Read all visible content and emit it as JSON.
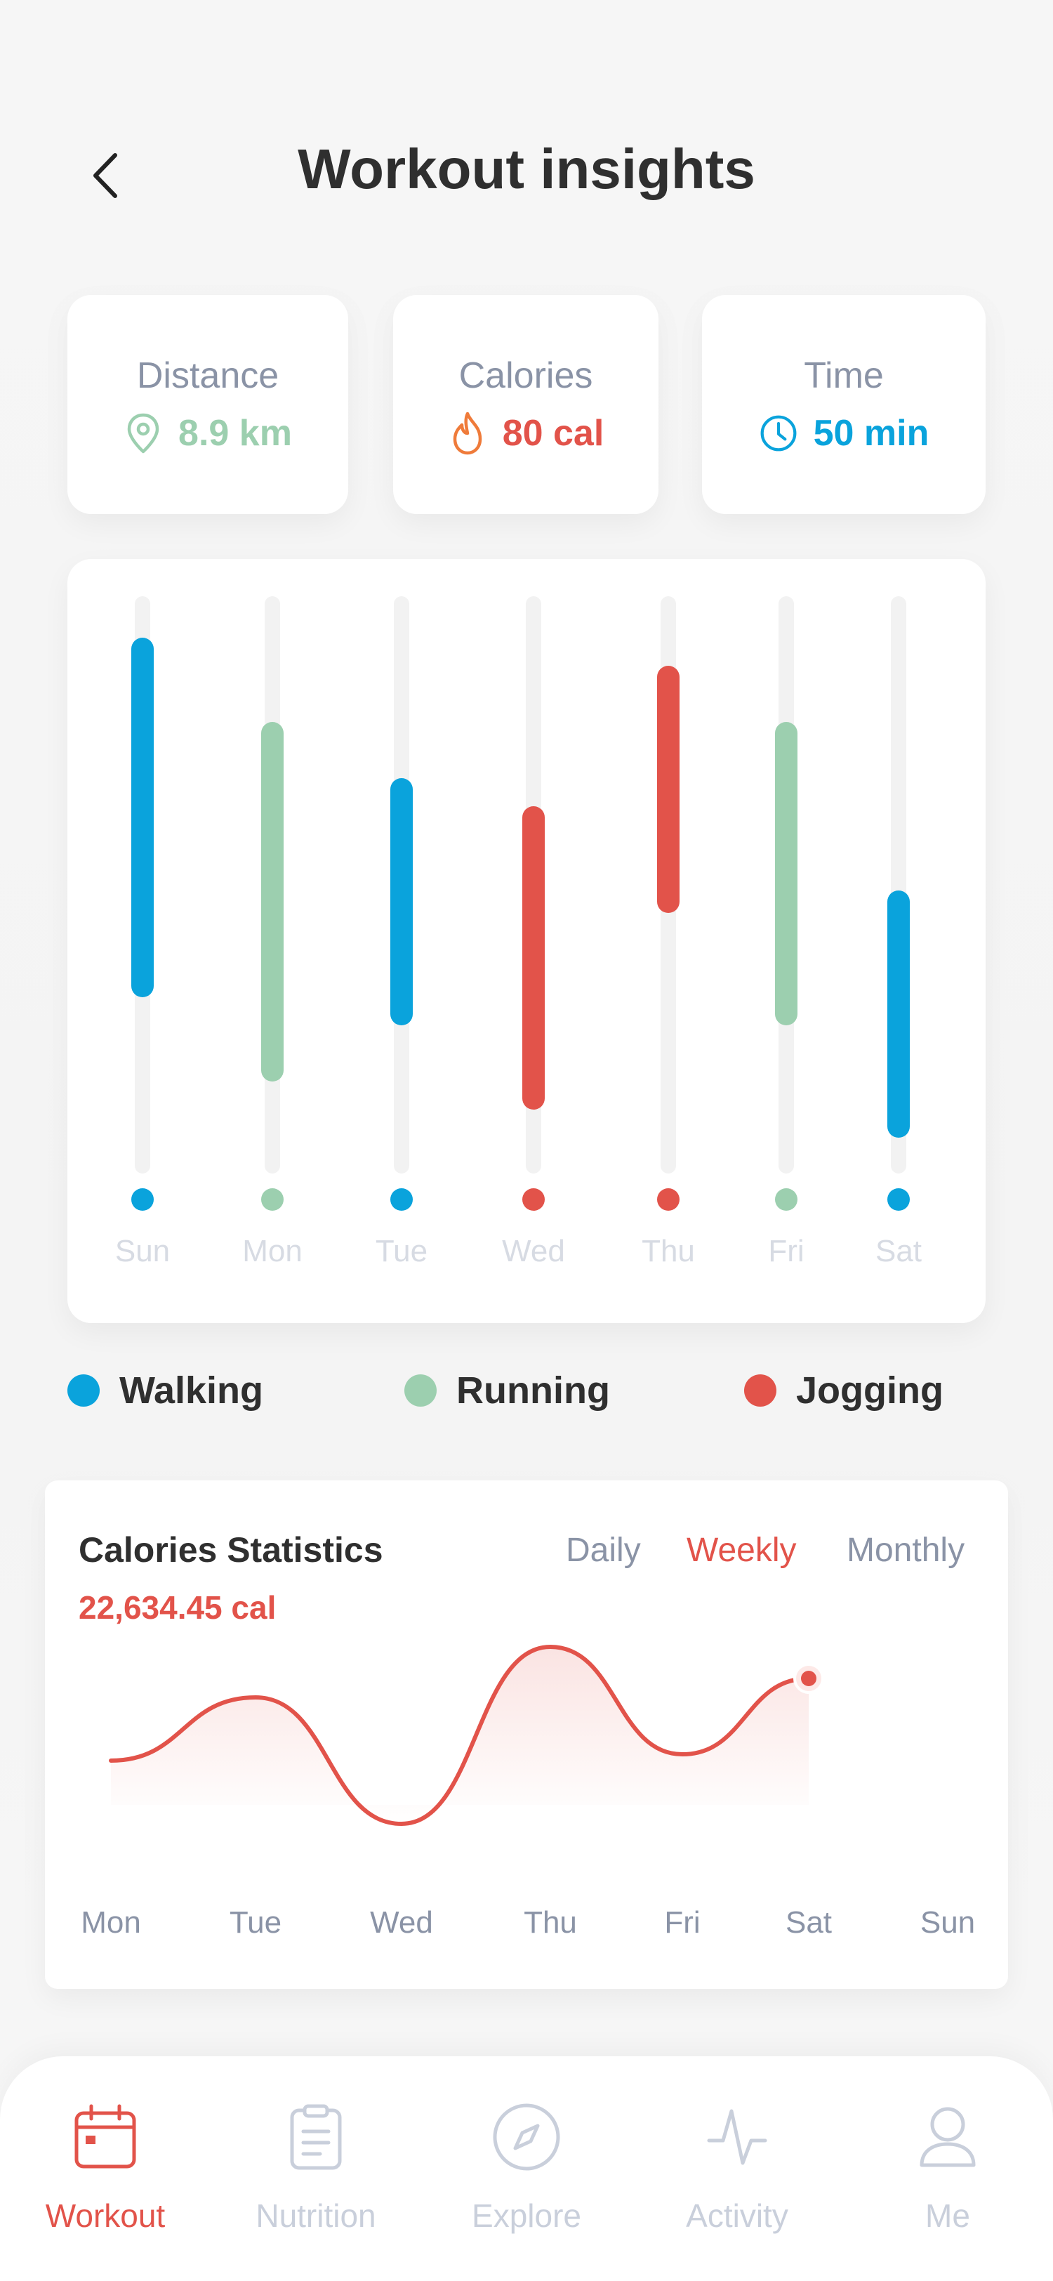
{
  "header": {
    "title": "Workout insights"
  },
  "stats": {
    "distance": {
      "label": "Distance",
      "value": "8.9 km",
      "color": "#9ccfaf"
    },
    "calories": {
      "label": "Calories",
      "value": "80 cal",
      "color": "#e2534a"
    },
    "time": {
      "label": "Time",
      "value": "50 min",
      "color": "#0aa3dc"
    }
  },
  "colors": {
    "walking": "#0aa3dc",
    "running": "#9ccfaf",
    "jogging": "#e2534a",
    "track": "#f2f2f2",
    "tick": "#d2d6df"
  },
  "weekly_chart": {
    "days": [
      {
        "label": "Sun",
        "activity": "walking",
        "start": 0.08,
        "end": 0.68
      },
      {
        "label": "Mon",
        "activity": "running",
        "start": 0.23,
        "end": 0.83
      },
      {
        "label": "Tue",
        "activity": "walking",
        "start": 0.33,
        "end": 0.73
      },
      {
        "label": "Wed",
        "activity": "jogging",
        "start": 0.38,
        "end": 0.88
      },
      {
        "label": "Thu",
        "activity": "jogging",
        "start": 0.13,
        "end": 0.53
      },
      {
        "label": "Fri",
        "activity": "running",
        "start": 0.23,
        "end": 0.73
      },
      {
        "label": "Sat",
        "activity": "walking",
        "start": 0.53,
        "end": 0.93
      }
    ]
  },
  "legend": {
    "walking": "Walking",
    "running": "Running",
    "jogging": "Jogging"
  },
  "calories_stats": {
    "title": "Calories Statistics",
    "total": "22,634.45 cal",
    "tabs": [
      "Daily",
      "Weekly",
      "Monthly"
    ],
    "active_tab": "Weekly",
    "days": [
      "Mon",
      "Tue",
      "Wed",
      "Thu",
      "Fri",
      "Sat",
      "Sun"
    ]
  },
  "chart_data": {
    "type": "line",
    "title": "Calories Statistics",
    "x": [
      "Mon",
      "Tue",
      "Wed",
      "Thu",
      "Fri",
      "Sat"
    ],
    "series": [
      {
        "values": [
          42,
          52,
          32,
          60,
          43,
          55
        ]
      }
    ],
    "xlabel": "",
    "ylabel": "",
    "ylim": [
      25,
      65
    ],
    "grid": false,
    "categories_axis": [
      "Mon",
      "Tue",
      "Wed",
      "Thu",
      "Fri",
      "Sat",
      "Sun"
    ]
  },
  "nav": {
    "items": [
      {
        "label": "Workout",
        "icon": "calendar-icon"
      },
      {
        "label": "Nutrition",
        "icon": "clipboard-icon"
      },
      {
        "label": "Explore",
        "icon": "compass-icon"
      },
      {
        "label": "Activity",
        "icon": "activity-icon"
      },
      {
        "label": "Me",
        "icon": "user-icon"
      }
    ],
    "active": "Workout"
  }
}
